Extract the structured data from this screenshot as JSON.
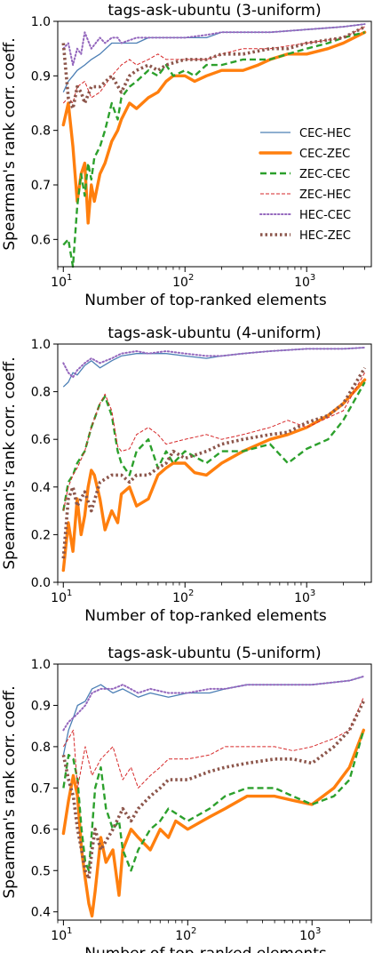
{
  "chart_data": [
    {
      "type": "line",
      "title": "tags-ask-ubuntu (3-uniform)",
      "xlabel": "Number of top-ranked elements",
      "ylabel": "Spearman's rank corr. coeff.",
      "x_scale": "log",
      "xlim": [
        9,
        3400
      ],
      "ylim": [
        0.55,
        1.0
      ],
      "yticks": [
        "0.6",
        "0.7",
        "0.8",
        "0.9",
        "1.0"
      ],
      "xticks": [
        "10^1",
        "10^2",
        "10^3"
      ],
      "grid": false,
      "legend": {
        "placement": "right"
      },
      "series": [
        {
          "name": "CEC-HEC",
          "x": [
            10,
            11,
            12,
            13,
            15,
            17,
            20,
            25,
            30,
            40,
            50,
            70,
            100,
            150,
            200,
            300,
            500,
            1000,
            2000,
            3000
          ],
          "y": [
            0.87,
            0.89,
            0.9,
            0.91,
            0.92,
            0.93,
            0.94,
            0.96,
            0.96,
            0.96,
            0.97,
            0.97,
            0.97,
            0.97,
            0.98,
            0.98,
            0.98,
            0.985,
            0.99,
            0.995
          ]
        },
        {
          "name": "CEC-ZEC",
          "x": [
            10,
            11,
            12,
            13,
            14,
            15,
            16,
            17,
            18,
            20,
            22,
            25,
            28,
            30,
            35,
            40,
            50,
            60,
            70,
            80,
            100,
            120,
            150,
            200,
            250,
            300,
            400,
            500,
            700,
            1000,
            1500,
            2000,
            3000
          ],
          "y": [
            0.81,
            0.85,
            0.77,
            0.67,
            0.72,
            0.74,
            0.63,
            0.7,
            0.67,
            0.72,
            0.74,
            0.78,
            0.8,
            0.82,
            0.85,
            0.84,
            0.86,
            0.87,
            0.89,
            0.9,
            0.9,
            0.89,
            0.9,
            0.91,
            0.91,
            0.91,
            0.92,
            0.93,
            0.94,
            0.94,
            0.95,
            0.96,
            0.98
          ]
        },
        {
          "name": "ZEC-CEC",
          "x": [
            10,
            11,
            12,
            13,
            14,
            15,
            16,
            17,
            18,
            20,
            22,
            25,
            28,
            30,
            35,
            40,
            50,
            60,
            70,
            80,
            100,
            120,
            150,
            200,
            300,
            500,
            700,
            1000,
            1500,
            2000,
            3000
          ],
          "y": [
            0.59,
            0.6,
            0.55,
            0.66,
            0.72,
            0.68,
            0.74,
            0.71,
            0.75,
            0.77,
            0.8,
            0.85,
            0.82,
            0.86,
            0.88,
            0.89,
            0.91,
            0.9,
            0.92,
            0.9,
            0.91,
            0.9,
            0.92,
            0.92,
            0.93,
            0.93,
            0.94,
            0.95,
            0.96,
            0.97,
            0.98
          ]
        },
        {
          "name": "ZEC-HEC",
          "x": [
            10,
            11,
            12,
            13,
            15,
            17,
            20,
            25,
            30,
            35,
            40,
            50,
            60,
            70,
            100,
            150,
            200,
            300,
            500,
            1000,
            2000,
            3000
          ],
          "y": [
            0.85,
            0.86,
            0.85,
            0.88,
            0.89,
            0.86,
            0.87,
            0.9,
            0.92,
            0.93,
            0.92,
            0.93,
            0.94,
            0.93,
            0.93,
            0.93,
            0.94,
            0.95,
            0.95,
            0.96,
            0.97,
            0.99
          ]
        },
        {
          "name": "HEC-CEC",
          "x": [
            10,
            11,
            12,
            13,
            14,
            15,
            17,
            20,
            22,
            25,
            28,
            30,
            40,
            50,
            70,
            100,
            150,
            200,
            300,
            500,
            1000,
            2000,
            3000
          ],
          "y": [
            0.95,
            0.96,
            0.92,
            0.95,
            0.94,
            0.98,
            0.95,
            0.97,
            0.96,
            0.97,
            0.97,
            0.96,
            0.97,
            0.97,
            0.97,
            0.97,
            0.975,
            0.98,
            0.98,
            0.98,
            0.985,
            0.99,
            0.995
          ]
        },
        {
          "name": "HEC-ZEC",
          "x": [
            10,
            11,
            12,
            13,
            14,
            15,
            17,
            20,
            25,
            30,
            35,
            40,
            50,
            60,
            70,
            100,
            150,
            200,
            300,
            500,
            700,
            1000,
            2000,
            3000
          ],
          "y": [
            0.96,
            0.86,
            0.84,
            0.88,
            0.87,
            0.85,
            0.88,
            0.88,
            0.9,
            0.87,
            0.9,
            0.91,
            0.92,
            0.91,
            0.92,
            0.93,
            0.93,
            0.94,
            0.94,
            0.95,
            0.95,
            0.96,
            0.97,
            0.99
          ]
        }
      ]
    },
    {
      "type": "line",
      "title": "tags-ask-ubuntu (4-uniform)",
      "xlabel": "Number of top-ranked elements",
      "ylabel": "Spearman's rank corr. coeff.",
      "x_scale": "log",
      "xlim": [
        9,
        3400
      ],
      "ylim": [
        0.0,
        1.0
      ],
      "yticks": [
        "0.0",
        "0.2",
        "0.4",
        "0.6",
        "0.8",
        "1.0"
      ],
      "xticks": [
        "10^1",
        "10^2",
        "10^3"
      ],
      "grid": false,
      "series": [
        {
          "name": "CEC-HEC",
          "x": [
            10,
            11,
            12,
            13,
            15,
            17,
            20,
            25,
            30,
            40,
            50,
            70,
            100,
            150,
            200,
            300,
            500,
            1000,
            2000,
            3000
          ],
          "y": [
            0.82,
            0.84,
            0.88,
            0.87,
            0.91,
            0.93,
            0.9,
            0.93,
            0.95,
            0.96,
            0.96,
            0.96,
            0.95,
            0.94,
            0.95,
            0.96,
            0.97,
            0.98,
            0.98,
            0.985
          ]
        },
        {
          "name": "CEC-ZEC",
          "x": [
            10,
            11,
            12,
            13,
            14,
            15,
            16,
            17,
            18,
            20,
            22,
            25,
            28,
            30,
            35,
            40,
            50,
            60,
            70,
            80,
            100,
            120,
            150,
            200,
            300,
            500,
            700,
            1000,
            1500,
            2000,
            3000
          ],
          "y": [
            0.05,
            0.25,
            0.13,
            0.35,
            0.2,
            0.28,
            0.4,
            0.47,
            0.45,
            0.35,
            0.22,
            0.3,
            0.25,
            0.37,
            0.4,
            0.32,
            0.35,
            0.45,
            0.48,
            0.5,
            0.5,
            0.46,
            0.45,
            0.5,
            0.55,
            0.6,
            0.62,
            0.65,
            0.7,
            0.75,
            0.85
          ]
        },
        {
          "name": "ZEC-CEC",
          "x": [
            10,
            11,
            12,
            13,
            15,
            17,
            20,
            22,
            25,
            28,
            30,
            35,
            40,
            50,
            60,
            70,
            80,
            100,
            150,
            200,
            300,
            500,
            700,
            1000,
            1500,
            2000,
            3000
          ],
          "y": [
            0.3,
            0.42,
            0.45,
            0.5,
            0.55,
            0.65,
            0.75,
            0.78,
            0.7,
            0.55,
            0.5,
            0.45,
            0.55,
            0.6,
            0.48,
            0.55,
            0.5,
            0.55,
            0.5,
            0.55,
            0.55,
            0.58,
            0.5,
            0.56,
            0.6,
            0.68,
            0.84
          ]
        },
        {
          "name": "ZEC-HEC",
          "x": [
            10,
            11,
            12,
            13,
            15,
            17,
            20,
            22,
            25,
            28,
            30,
            35,
            40,
            50,
            60,
            70,
            100,
            150,
            200,
            300,
            500,
            700,
            1000,
            2000,
            3000
          ],
          "y": [
            0.3,
            0.4,
            0.45,
            0.48,
            0.55,
            0.65,
            0.75,
            0.79,
            0.72,
            0.57,
            0.55,
            0.56,
            0.62,
            0.65,
            0.62,
            0.58,
            0.6,
            0.62,
            0.6,
            0.62,
            0.65,
            0.68,
            0.65,
            0.72,
            0.88
          ]
        },
        {
          "name": "HEC-CEC",
          "x": [
            10,
            11,
            12,
            13,
            15,
            17,
            20,
            25,
            30,
            40,
            50,
            70,
            100,
            150,
            200,
            300,
            500,
            1000,
            2000,
            3000
          ],
          "y": [
            0.92,
            0.88,
            0.86,
            0.89,
            0.92,
            0.94,
            0.92,
            0.94,
            0.96,
            0.97,
            0.96,
            0.97,
            0.96,
            0.95,
            0.95,
            0.96,
            0.97,
            0.98,
            0.98,
            0.985
          ]
        },
        {
          "name": "HEC-ZEC",
          "x": [
            10,
            11,
            12,
            13,
            15,
            17,
            20,
            25,
            30,
            35,
            40,
            50,
            60,
            70,
            80,
            100,
            150,
            200,
            300,
            500,
            700,
            1000,
            1500,
            2000,
            3000
          ],
          "y": [
            0.1,
            0.35,
            0.4,
            0.32,
            0.38,
            0.3,
            0.42,
            0.45,
            0.45,
            0.42,
            0.45,
            0.45,
            0.48,
            0.5,
            0.55,
            0.52,
            0.55,
            0.58,
            0.6,
            0.62,
            0.63,
            0.67,
            0.7,
            0.75,
            0.9
          ]
        }
      ]
    },
    {
      "type": "line",
      "title": "tags-ask-ubuntu (5-uniform)",
      "xlabel": "Number of top-ranked elements",
      "ylabel": "Spearman's rank corr. coeff.",
      "x_scale": "log",
      "xlim": [
        9,
        3000
      ],
      "ylim": [
        0.38,
        1.0
      ],
      "yticks": [
        "0.4",
        "0.5",
        "0.6",
        "0.7",
        "0.8",
        "0.9",
        "1.0"
      ],
      "xticks": [
        "10^1",
        "10^2",
        "10^3"
      ],
      "grid": false,
      "series": [
        {
          "name": "CEC-HEC",
          "x": [
            10,
            11,
            12,
            13,
            15,
            17,
            20,
            25,
            30,
            40,
            50,
            70,
            100,
            150,
            200,
            300,
            500,
            1000,
            2000,
            2600
          ],
          "y": [
            0.78,
            0.84,
            0.87,
            0.9,
            0.91,
            0.94,
            0.95,
            0.93,
            0.94,
            0.92,
            0.93,
            0.92,
            0.93,
            0.93,
            0.94,
            0.95,
            0.95,
            0.95,
            0.96,
            0.97
          ]
        },
        {
          "name": "CEC-ZEC",
          "x": [
            10,
            11,
            12,
            13,
            14,
            15,
            16,
            17,
            18,
            20,
            22,
            25,
            28,
            30,
            35,
            40,
            50,
            60,
            70,
            80,
            100,
            150,
            200,
            300,
            500,
            700,
            1000,
            1500,
            2000,
            2600
          ],
          "y": [
            0.59,
            0.67,
            0.73,
            0.68,
            0.55,
            0.48,
            0.42,
            0.39,
            0.45,
            0.58,
            0.52,
            0.55,
            0.44,
            0.55,
            0.6,
            0.58,
            0.55,
            0.6,
            0.58,
            0.62,
            0.6,
            0.63,
            0.65,
            0.68,
            0.68,
            0.67,
            0.66,
            0.7,
            0.75,
            0.84
          ]
        },
        {
          "name": "ZEC-CEC",
          "x": [
            10,
            11,
            12,
            13,
            14,
            15,
            16,
            17,
            18,
            20,
            22,
            25,
            28,
            30,
            35,
            40,
            50,
            60,
            70,
            100,
            150,
            200,
            300,
            500,
            700,
            1000,
            1500,
            2000,
            2600
          ],
          "y": [
            0.7,
            0.78,
            0.77,
            0.72,
            0.6,
            0.52,
            0.5,
            0.6,
            0.7,
            0.75,
            0.65,
            0.6,
            0.62,
            0.55,
            0.5,
            0.55,
            0.6,
            0.62,
            0.65,
            0.62,
            0.65,
            0.68,
            0.7,
            0.7,
            0.68,
            0.66,
            0.68,
            0.72,
            0.84
          ]
        },
        {
          "name": "ZEC-HEC",
          "x": [
            10,
            11,
            12,
            13,
            15,
            17,
            20,
            25,
            30,
            35,
            40,
            50,
            60,
            70,
            100,
            150,
            200,
            300,
            500,
            700,
            1000,
            1500,
            2000,
            2600
          ],
          "y": [
            0.8,
            0.82,
            0.84,
            0.7,
            0.8,
            0.73,
            0.77,
            0.8,
            0.72,
            0.75,
            0.7,
            0.73,
            0.75,
            0.77,
            0.77,
            0.78,
            0.8,
            0.8,
            0.8,
            0.79,
            0.8,
            0.82,
            0.84,
            0.92
          ]
        },
        {
          "name": "HEC-CEC",
          "x": [
            10,
            11,
            12,
            13,
            15,
            17,
            20,
            25,
            30,
            40,
            50,
            70,
            100,
            150,
            200,
            300,
            500,
            1000,
            2000,
            2600
          ],
          "y": [
            0.84,
            0.86,
            0.87,
            0.88,
            0.9,
            0.93,
            0.94,
            0.94,
            0.95,
            0.93,
            0.94,
            0.93,
            0.93,
            0.94,
            0.94,
            0.95,
            0.95,
            0.95,
            0.96,
            0.97
          ]
        },
        {
          "name": "HEC-ZEC",
          "x": [
            10,
            11,
            12,
            13,
            14,
            15,
            16,
            17,
            18,
            20,
            25,
            30,
            35,
            40,
            50,
            60,
            70,
            100,
            150,
            200,
            300,
            500,
            700,
            1000,
            1500,
            2000,
            2600
          ],
          "y": [
            0.78,
            0.72,
            0.68,
            0.6,
            0.55,
            0.5,
            0.48,
            0.55,
            0.6,
            0.55,
            0.6,
            0.65,
            0.62,
            0.65,
            0.68,
            0.7,
            0.72,
            0.72,
            0.74,
            0.75,
            0.76,
            0.77,
            0.77,
            0.76,
            0.8,
            0.84,
            0.91
          ]
        }
      ]
    }
  ],
  "colors": {
    "CEC-HEC": "#4c7fb5",
    "CEC-ZEC": "#ff7f0e",
    "ZEC-CEC": "#2ca02c",
    "ZEC-HEC": "#d62728",
    "HEC-CEC": "#9467bd",
    "HEC-ZEC": "#8c564b"
  }
}
